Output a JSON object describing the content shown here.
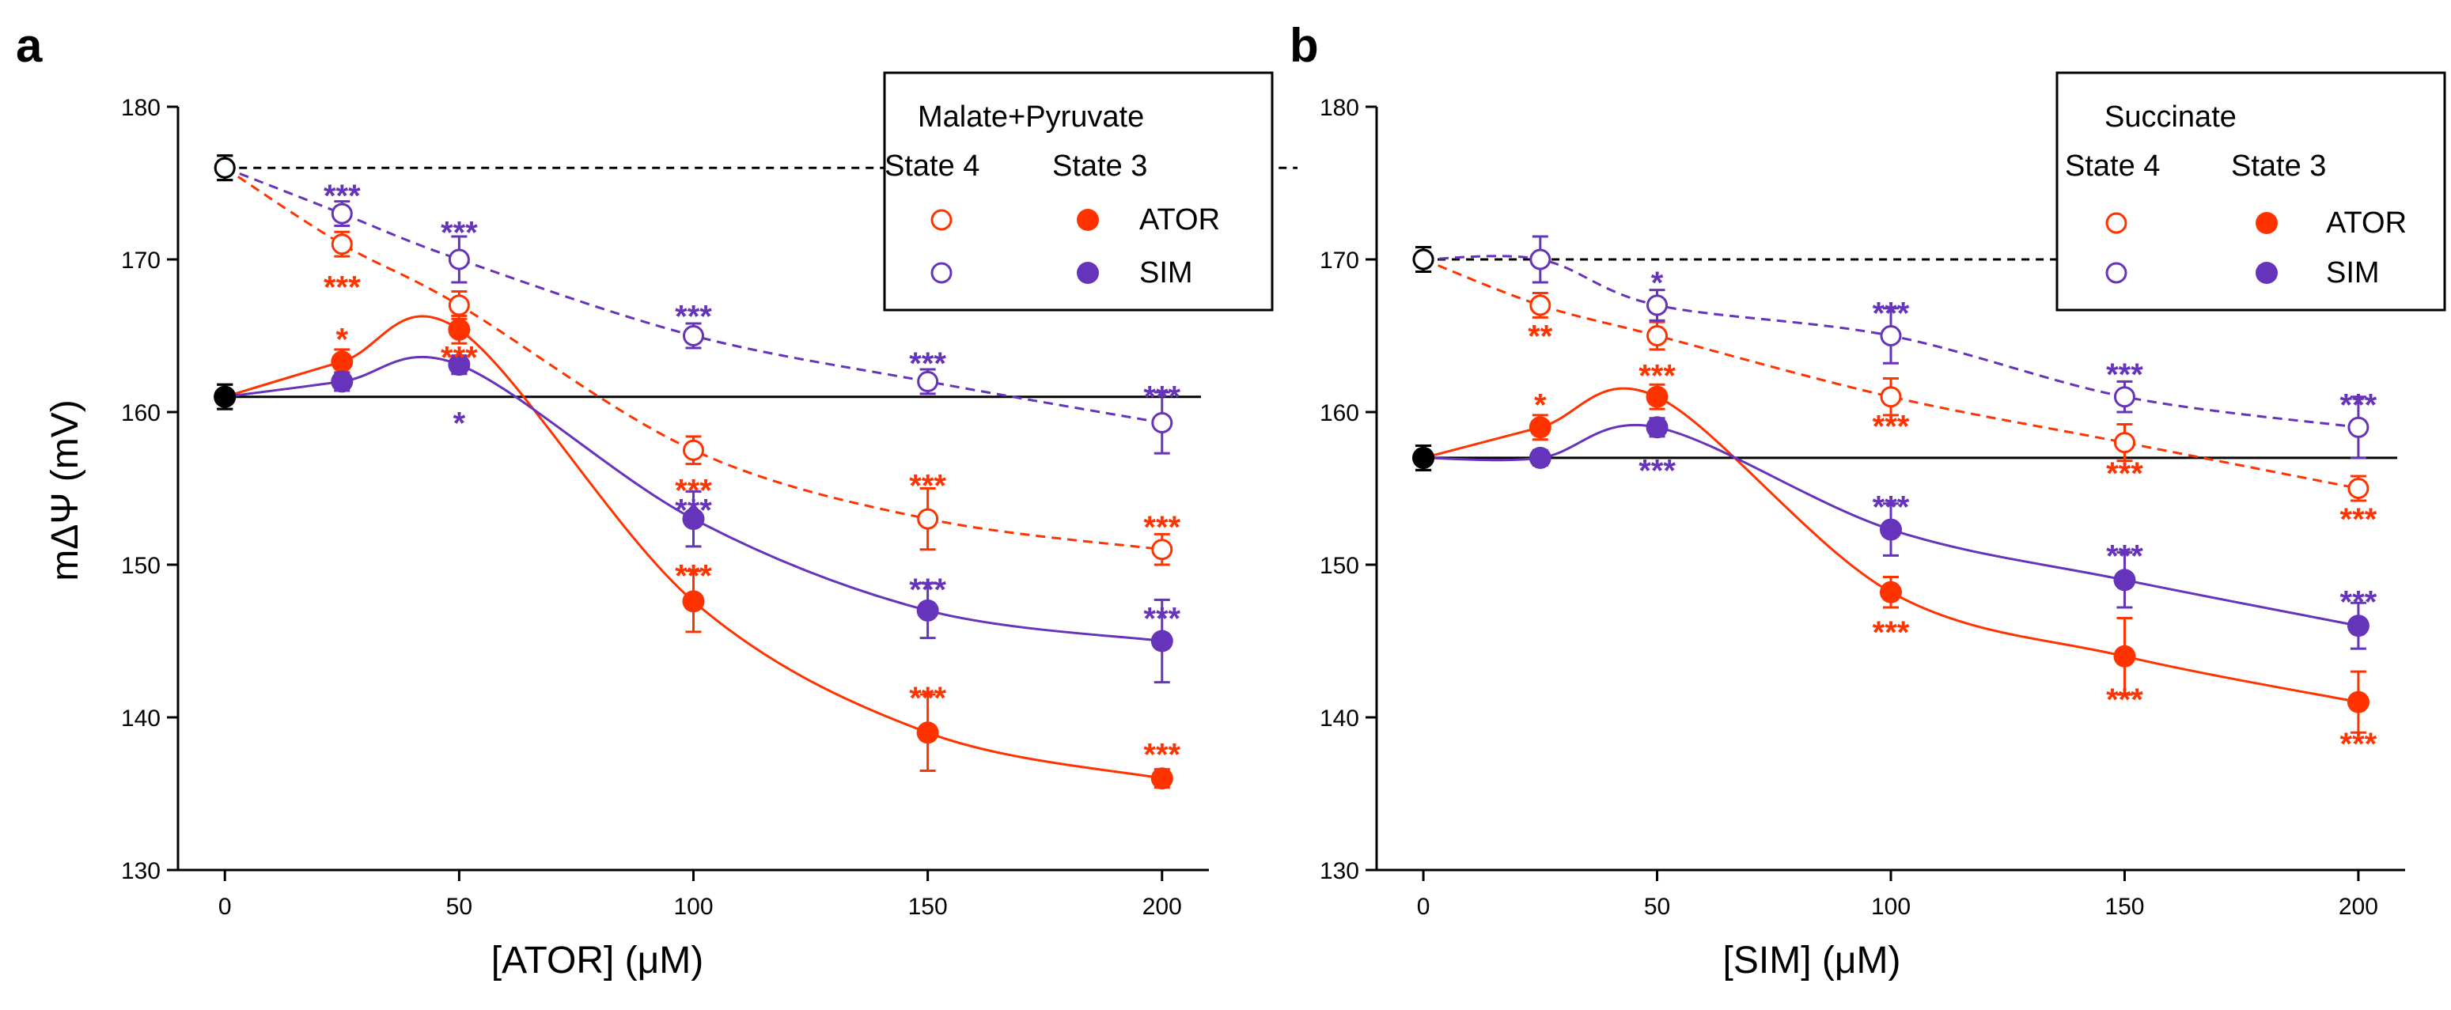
{
  "colors": {
    "ator": "#ff3300",
    "sim": "#6633bb",
    "control": "#000000",
    "axis": "#000000"
  },
  "chart_data": [
    {
      "panel": "a",
      "type": "scatter",
      "xlabel": "[ATOR] (μM)",
      "ylabel": "mΔΨ (mV)",
      "xlim": [
        -10,
        210
      ],
      "ylim": [
        130,
        180
      ],
      "xticks": [
        0,
        50,
        100,
        150,
        200
      ],
      "yticks": [
        130,
        140,
        150,
        160,
        170,
        180
      ],
      "reference_lines": [
        {
          "name": "state4-control",
          "y": 176,
          "style": "dashed"
        },
        {
          "name": "state3-control",
          "y": 161,
          "style": "solid"
        }
      ],
      "legend": {
        "title": "Malate+Pyruvate",
        "col1": "State 4",
        "col2": "State 3",
        "entries": [
          "ATOR",
          "SIM"
        ],
        "placement": "top-right"
      },
      "series": [
        {
          "name": "ATOR State 4",
          "color_key": "ator",
          "filled": false,
          "dashed": true,
          "x": [
            0,
            25,
            50,
            100,
            150,
            200
          ],
          "y": [
            176,
            171,
            167,
            157.5,
            153,
            151
          ],
          "err": [
            0.8,
            0.8,
            0.9,
            0.9,
            2,
            1
          ]
        },
        {
          "name": "SIM State 4",
          "color_key": "sim",
          "filled": false,
          "dashed": true,
          "x": [
            0,
            25,
            50,
            100,
            150,
            200
          ],
          "y": [
            176,
            173,
            170,
            165,
            162,
            159.3
          ],
          "err": [
            0.8,
            0.8,
            1.5,
            0.8,
            0.8,
            2
          ]
        },
        {
          "name": "ATOR State 3",
          "color_key": "ator",
          "filled": true,
          "dashed": false,
          "x": [
            0,
            25,
            50,
            100,
            150,
            200
          ],
          "y": [
            161,
            163.3,
            165.4,
            147.6,
            139,
            136
          ],
          "err": [
            0.8,
            0.8,
            0.9,
            2,
            2.5,
            0.6
          ]
        },
        {
          "name": "SIM State 3",
          "color_key": "sim",
          "filled": true,
          "dashed": false,
          "x": [
            0,
            25,
            50,
            100,
            150,
            200
          ],
          "y": [
            161,
            162,
            163.1,
            153,
            147,
            145
          ],
          "err": [
            0.8,
            0.6,
            0.6,
            1.8,
            1.8,
            2.7
          ]
        }
      ],
      "annotations": [
        {
          "text": "***",
          "x": 25,
          "y": 174.2,
          "color_key": "sim"
        },
        {
          "text": "***",
          "x": 25,
          "y": 168.2,
          "color_key": "ator"
        },
        {
          "text": "***",
          "x": 50,
          "y": 171.8,
          "color_key": "sim"
        },
        {
          "text": "*",
          "x": 25,
          "y": 164.8,
          "color_key": "ator"
        },
        {
          "text": "***",
          "x": 50,
          "y": 163.6,
          "color_key": "ator"
        },
        {
          "text": "*",
          "x": 50,
          "y": 159.3,
          "color_key": "sim"
        },
        {
          "text": "***",
          "x": 100,
          "y": 166.3,
          "color_key": "sim"
        },
        {
          "text": "***",
          "x": 150,
          "y": 163.2,
          "color_key": "sim"
        },
        {
          "text": "***",
          "x": 200,
          "y": 161,
          "color_key": "sim"
        },
        {
          "text": "***",
          "x": 100,
          "y": 154.9,
          "color_key": "ator"
        },
        {
          "text": "***",
          "x": 100,
          "y": 153.6,
          "color_key": "sim"
        },
        {
          "text": "***",
          "x": 150,
          "y": 155.2,
          "color_key": "ator"
        },
        {
          "text": "***",
          "x": 200,
          "y": 152.5,
          "color_key": "ator"
        },
        {
          "text": "***",
          "x": 100,
          "y": 149.3,
          "color_key": "ator"
        },
        {
          "text": "***",
          "x": 150,
          "y": 148.4,
          "color_key": "sim"
        },
        {
          "text": "***",
          "x": 200,
          "y": 146.5,
          "color_key": "sim"
        },
        {
          "text": "***",
          "x": 150,
          "y": 141.3,
          "color_key": "ator"
        },
        {
          "text": "***",
          "x": 200,
          "y": 137.6,
          "color_key": "ator"
        }
      ]
    },
    {
      "panel": "b",
      "type": "scatter",
      "xlabel": "[SIM] (μM)",
      "ylabel": "",
      "xlim": [
        -10,
        210
      ],
      "ylim": [
        130,
        180
      ],
      "xticks": [
        0,
        50,
        100,
        150,
        200
      ],
      "yticks": [
        130,
        140,
        150,
        160,
        170,
        180
      ],
      "reference_lines": [
        {
          "name": "state4-control",
          "y": 170,
          "style": "dashed"
        },
        {
          "name": "state3-control",
          "y": 157,
          "style": "solid"
        }
      ],
      "legend": {
        "title": "Succinate",
        "col1": "State 4",
        "col2": "State 3",
        "entries": [
          "ATOR",
          "SIM"
        ],
        "placement": "top-right"
      },
      "series": [
        {
          "name": "ATOR State 4",
          "color_key": "ator",
          "filled": false,
          "dashed": true,
          "x": [
            0,
            25,
            50,
            100,
            150,
            200
          ],
          "y": [
            170,
            167,
            165,
            161,
            158,
            155
          ],
          "err": [
            0.8,
            0.8,
            0.9,
            1.2,
            1.2,
            0.8
          ]
        },
        {
          "name": "SIM State 4",
          "color_key": "sim",
          "filled": false,
          "dashed": true,
          "x": [
            0,
            25,
            50,
            100,
            150,
            200
          ],
          "y": [
            170,
            170,
            167,
            165,
            161,
            159
          ],
          "err": [
            0.8,
            1.5,
            1,
            1.8,
            1,
            2
          ]
        },
        {
          "name": "ATOR State 3",
          "color_key": "ator",
          "filled": true,
          "dashed": false,
          "x": [
            0,
            25,
            50,
            100,
            150,
            200
          ],
          "y": [
            157,
            159,
            161,
            148.2,
            144,
            141
          ],
          "err": [
            0.8,
            0.8,
            0.8,
            1,
            2.5,
            2
          ]
        },
        {
          "name": "SIM State 3",
          "color_key": "sim",
          "filled": true,
          "dashed": false,
          "x": [
            0,
            25,
            50,
            100,
            150,
            200
          ],
          "y": [
            157,
            157,
            159,
            152.3,
            149,
            146
          ],
          "err": [
            0.8,
            0.5,
            0.6,
            1.7,
            1.8,
            1.5
          ]
        }
      ],
      "annotations": [
        {
          "text": "*",
          "x": 50,
          "y": 168.5,
          "color_key": "sim"
        },
        {
          "text": "**",
          "x": 25,
          "y": 165,
          "color_key": "ator"
        },
        {
          "text": "*",
          "x": 25,
          "y": 160.5,
          "color_key": "ator"
        },
        {
          "text": "***",
          "x": 50,
          "y": 162.4,
          "color_key": "ator"
        },
        {
          "text": "***",
          "x": 50,
          "y": 156.2,
          "color_key": "sim"
        },
        {
          "text": "***",
          "x": 100,
          "y": 166.5,
          "color_key": "sim"
        },
        {
          "text": "***",
          "x": 100,
          "y": 159.1,
          "color_key": "ator"
        },
        {
          "text": "***",
          "x": 100,
          "y": 153.8,
          "color_key": "sim"
        },
        {
          "text": "***",
          "x": 100,
          "y": 145.6,
          "color_key": "ator"
        },
        {
          "text": "***",
          "x": 150,
          "y": 162.5,
          "color_key": "sim"
        },
        {
          "text": "***",
          "x": 150,
          "y": 156,
          "color_key": "ator"
        },
        {
          "text": "***",
          "x": 150,
          "y": 150.6,
          "color_key": "sim"
        },
        {
          "text": "***",
          "x": 150,
          "y": 141.2,
          "color_key": "ator"
        },
        {
          "text": "***",
          "x": 200,
          "y": 160.5,
          "color_key": "sim"
        },
        {
          "text": "***",
          "x": 200,
          "y": 153,
          "color_key": "ator"
        },
        {
          "text": "***",
          "x": 200,
          "y": 147.6,
          "color_key": "sim"
        },
        {
          "text": "***",
          "x": 200,
          "y": 138.3,
          "color_key": "ator"
        }
      ]
    }
  ]
}
